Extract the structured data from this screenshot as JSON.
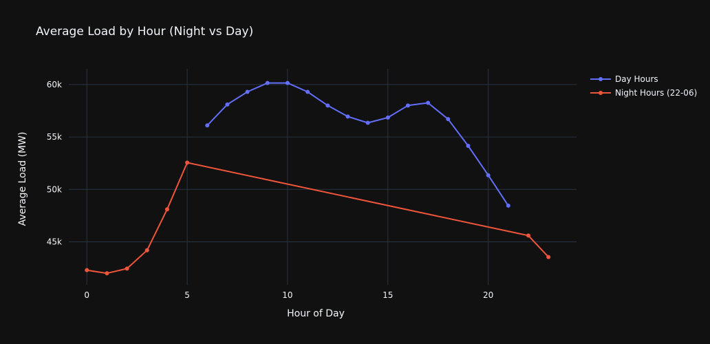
{
  "chart_data": {
    "type": "line",
    "title": "Average Load by Hour (Night vs Day)",
    "xlabel": "Hour of Day",
    "ylabel": "Average Load (MW)",
    "xlim": [
      -0.9,
      24.4
    ],
    "ylim": [
      40900,
      61500
    ],
    "x_ticks": [
      0,
      5,
      10,
      15,
      20
    ],
    "y_ticks": [
      45000,
      50000,
      55000,
      60000
    ],
    "y_tick_labels": [
      "45k",
      "50k",
      "55k",
      "60k"
    ],
    "grid": true,
    "legend_position": "top-right",
    "series": [
      {
        "name": "Day Hours",
        "color": "#636efa",
        "x": [
          6,
          7,
          8,
          9,
          10,
          11,
          12,
          13,
          14,
          15,
          16,
          17,
          18,
          19,
          20,
          21
        ],
        "y": [
          56100,
          58100,
          59300,
          60150,
          60150,
          59300,
          58000,
          56950,
          56350,
          56850,
          58000,
          58250,
          56700,
          54150,
          51350,
          48450
        ]
      },
      {
        "name": "Night Hours (22-06)",
        "color": "#ef553b",
        "x": [
          0,
          1,
          2,
          3,
          4,
          5,
          22,
          23
        ],
        "y": [
          42300,
          42000,
          42450,
          44200,
          48100,
          52550,
          45600,
          43550
        ]
      }
    ]
  }
}
